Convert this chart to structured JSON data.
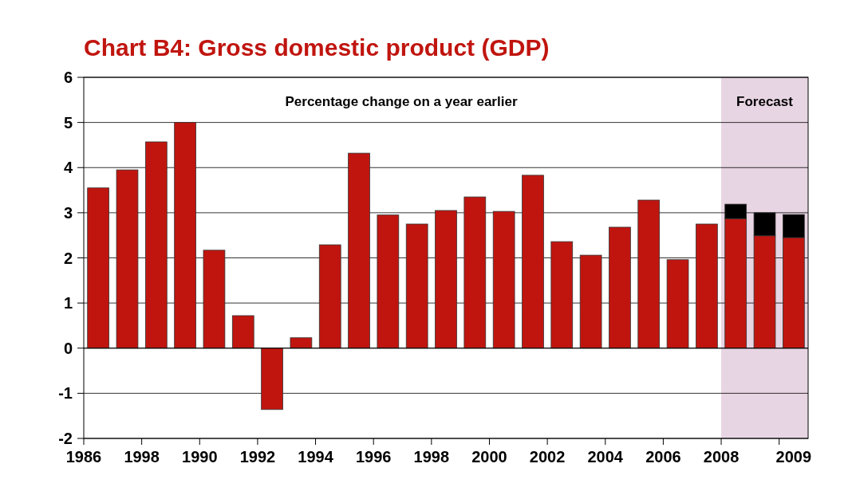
{
  "chart_data": {
    "type": "bar",
    "title": "Chart B4: Gross domestic product (GDP)",
    "stacked": true,
    "categories": [
      "1986",
      null,
      "1998",
      null,
      "1990",
      null,
      "1992",
      null,
      "1994",
      null,
      "1996",
      null,
      "1998",
      null,
      "2000",
      null,
      "2002",
      null,
      "2004",
      null,
      "2006",
      null,
      "2008",
      null,
      "2009"
    ],
    "series": [
      {
        "color": "#c0150f",
        "values": [
          3.55,
          3.95,
          4.57,
          5.0,
          2.17,
          0.72,
          -1.36,
          0.23,
          2.29,
          4.32,
          2.95,
          2.75,
          3.05,
          3.35,
          3.03,
          3.83,
          2.36,
          2.06,
          2.68,
          3.28,
          1.96,
          2.75,
          2.87,
          2.49,
          2.45
        ]
      },
      {
        "color": "#000000",
        "values": [
          null,
          null,
          null,
          null,
          null,
          null,
          null,
          null,
          null,
          null,
          null,
          null,
          null,
          null,
          null,
          null,
          null,
          null,
          null,
          null,
          null,
          null,
          0.32,
          0.51,
          0.51
        ]
      }
    ],
    "ylim": [
      -2,
      6
    ],
    "yticks": [
      -2,
      -1,
      0,
      1,
      2,
      3,
      4,
      5,
      6
    ],
    "grid": "y",
    "bands": [
      {
        "axis": "x",
        "from": "2008",
        "to": "2009",
        "label": "Forecast",
        "color": "#e8d5e3"
      }
    ],
    "annotations": [
      "Percentage change on a year earlier"
    ]
  }
}
